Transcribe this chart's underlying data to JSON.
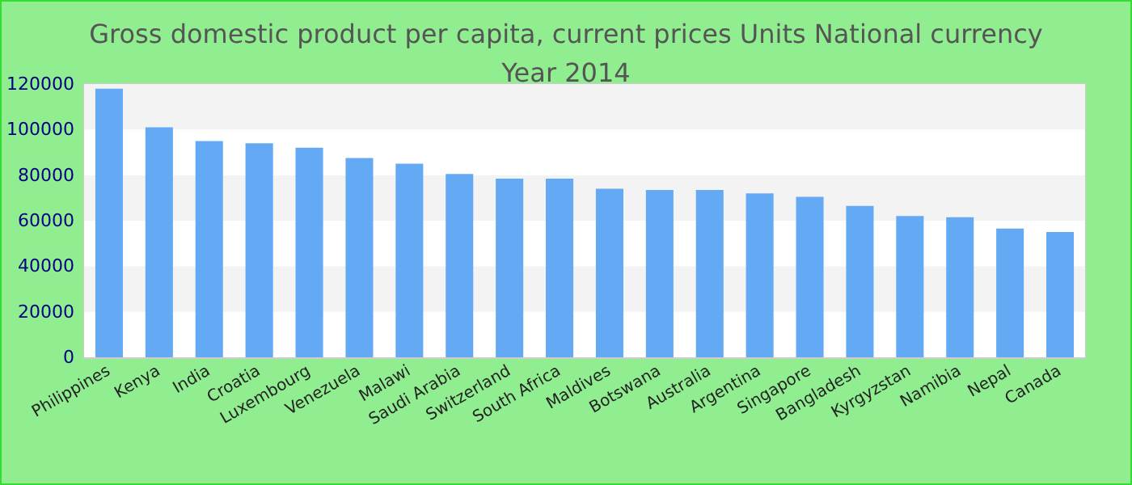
{
  "chart_data": {
    "type": "bar",
    "title": "Gross domestic product per capita, current prices Units National currency",
    "subtitle": "Year 2014",
    "categories": [
      "Philippines",
      "Kenya",
      "India",
      "Croatia",
      "Luxembourg",
      "Venezuela",
      "Malawi",
      "Saudi Arabia",
      "Switzerland",
      "South Africa",
      "Maldives",
      "Botswana",
      "Australia",
      "Argentina",
      "Singapore",
      "Bangladesh",
      "Kyrgyzstan",
      "Namibia",
      "Nepal",
      "Canada"
    ],
    "values": [
      118000,
      101000,
      95000,
      94000,
      92000,
      87500,
      85000,
      80500,
      78500,
      78500,
      74000,
      73500,
      73500,
      72000,
      70500,
      66500,
      62000,
      61500,
      56500,
      55000
    ],
    "color": "#63a9f4",
    "ylim": [
      0,
      120000
    ],
    "yticks": [
      0,
      20000,
      40000,
      60000,
      80000,
      100000,
      120000
    ]
  }
}
